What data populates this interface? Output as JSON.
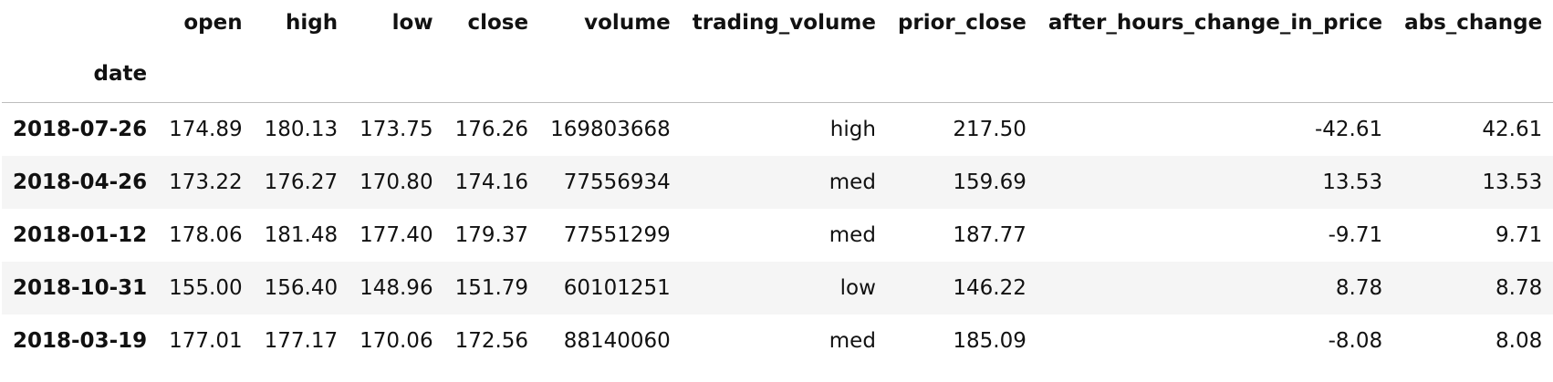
{
  "table": {
    "columns": [
      "open",
      "high",
      "low",
      "close",
      "volume",
      "trading_volume",
      "prior_close",
      "after_hours_change_in_price",
      "abs_change"
    ],
    "index_name": "date",
    "rows": [
      {
        "date": "2018-07-26",
        "values": [
          "174.89",
          "180.13",
          "173.75",
          "176.26",
          "169803668",
          "high",
          "217.50",
          "-42.61",
          "42.61"
        ]
      },
      {
        "date": "2018-04-26",
        "values": [
          "173.22",
          "176.27",
          "170.80",
          "174.16",
          "77556934",
          "med",
          "159.69",
          "13.53",
          "13.53"
        ]
      },
      {
        "date": "2018-01-12",
        "values": [
          "178.06",
          "181.48",
          "177.40",
          "179.37",
          "77551299",
          "med",
          "187.77",
          "-9.71",
          "9.71"
        ]
      },
      {
        "date": "2018-10-31",
        "values": [
          "155.00",
          "156.40",
          "148.96",
          "151.79",
          "60101251",
          "low",
          "146.22",
          "8.78",
          "8.78"
        ]
      },
      {
        "date": "2018-03-19",
        "values": [
          "177.01",
          "177.17",
          "170.06",
          "172.56",
          "88140060",
          "med",
          "185.09",
          "-8.08",
          "8.08"
        ]
      }
    ]
  }
}
